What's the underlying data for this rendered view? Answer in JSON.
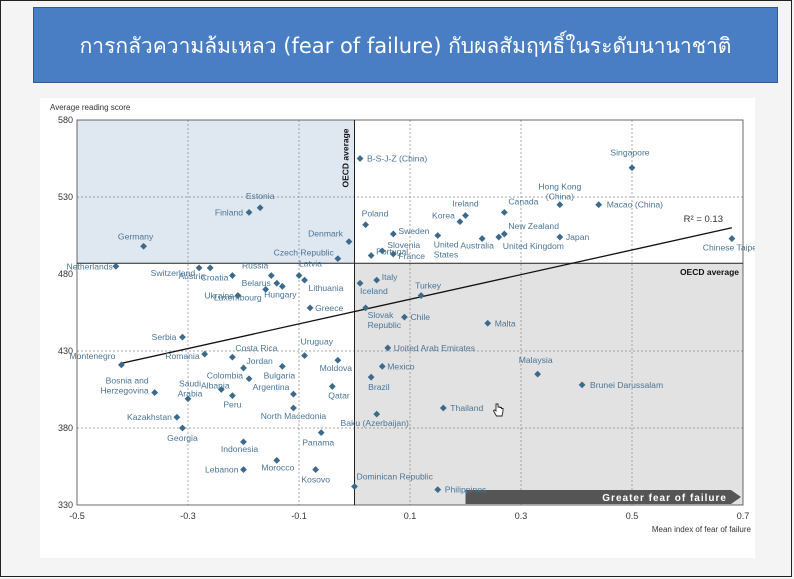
{
  "banner": {
    "title": "การกลัวความล้มเหลว (fear of failure) กับผลสัมฤทธิ์ในระดับนานาชาติ"
  },
  "colors": {
    "banner": "#4a7ec4",
    "point": "#3c6a8a",
    "label": "#4a7596",
    "quadrant_blue": "#dfe7f1",
    "quadrant_grey": "#e2e2e2"
  },
  "chart_data": {
    "type": "scatter",
    "ylabel": "Average reading score",
    "xlabel": "Mean index of fear of failure",
    "xlim": [
      -0.5,
      0.7
    ],
    "ylim": [
      330,
      580
    ],
    "xticks": [
      "-0.5",
      "-0.3",
      "-0.1",
      "0.1",
      "0.3",
      "0.5",
      "0.7"
    ],
    "yticks": [
      "330",
      "380",
      "430",
      "480",
      "530",
      "580"
    ],
    "oecd_avg_x": 0.0,
    "oecd_avg_y": 487,
    "oecd_average_label_v": "OECD average",
    "oecd_average_label_h": "OECD average",
    "r2_label": "R² = 0.13",
    "arrow_label": "Greater fear of failure",
    "trendline": [
      [
        -0.42,
        422
      ],
      [
        0.68,
        510
      ]
    ],
    "points": [
      {
        "name": "B-S-J-Z (China)",
        "x": 0.01,
        "y": 555
      },
      {
        "name": "Singapore",
        "x": 0.5,
        "y": 549
      },
      {
        "name": "Hong Kong (China)",
        "x": 0.37,
        "y": 525
      },
      {
        "name": "Macao (China)",
        "x": 0.44,
        "y": 525
      },
      {
        "name": "Estonia",
        "x": -0.17,
        "y": 523
      },
      {
        "name": "Finland",
        "x": -0.19,
        "y": 520
      },
      {
        "name": "Ireland",
        "x": 0.2,
        "y": 518
      },
      {
        "name": "Canada",
        "x": 0.27,
        "y": 520
      },
      {
        "name": "Korea",
        "x": 0.19,
        "y": 514
      },
      {
        "name": "Poland",
        "x": 0.02,
        "y": 512
      },
      {
        "name": "Sweden",
        "x": 0.07,
        "y": 506
      },
      {
        "name": "New Zealand",
        "x": 0.27,
        "y": 506
      },
      {
        "name": "Slovenia",
        "x": 0.05,
        "y": 495
      },
      {
        "name": "Japan",
        "x": 0.37,
        "y": 504
      },
      {
        "name": "United States",
        "x": 0.15,
        "y": 505
      },
      {
        "name": "Australia",
        "x": 0.23,
        "y": 503
      },
      {
        "name": "United Kingdom",
        "x": 0.26,
        "y": 504
      },
      {
        "name": "Chinese Taipei",
        "x": 0.68,
        "y": 503
      },
      {
        "name": "Germany",
        "x": -0.38,
        "y": 498
      },
      {
        "name": "Denmark",
        "x": -0.01,
        "y": 501
      },
      {
        "name": "Portugal",
        "x": 0.03,
        "y": 492
      },
      {
        "name": "Czech Republic",
        "x": -0.03,
        "y": 490
      },
      {
        "name": "France",
        "x": 0.07,
        "y": 493
      },
      {
        "name": "Netherlands",
        "x": -0.43,
        "y": 485
      },
      {
        "name": "Switzerland",
        "x": -0.28,
        "y": 484
      },
      {
        "name": "Austria",
        "x": -0.26,
        "y": 484
      },
      {
        "name": "Latvia",
        "x": -0.1,
        "y": 479
      },
      {
        "name": "Italy",
        "x": 0.04,
        "y": 476
      },
      {
        "name": "Russia",
        "x": -0.15,
        "y": 479
      },
      {
        "name": "Croatia",
        "x": -0.22,
        "y": 479
      },
      {
        "name": "Belarus",
        "x": -0.14,
        "y": 474
      },
      {
        "name": "Lithuania",
        "x": -0.09,
        "y": 476
      },
      {
        "name": "Iceland",
        "x": 0.01,
        "y": 474
      },
      {
        "name": "Ukraine",
        "x": -0.21,
        "y": 466
      },
      {
        "name": "Turkey",
        "x": 0.12,
        "y": 466
      },
      {
        "name": "Hungary",
        "x": -0.13,
        "y": 472
      },
      {
        "name": "Luxembourg",
        "x": -0.16,
        "y": 470
      },
      {
        "name": "Greece",
        "x": -0.08,
        "y": 458
      },
      {
        "name": "Slovak Republic",
        "x": 0.02,
        "y": 458
      },
      {
        "name": "Chile",
        "x": 0.09,
        "y": 452
      },
      {
        "name": "Malta",
        "x": 0.24,
        "y": 448
      },
      {
        "name": "Serbia",
        "x": -0.31,
        "y": 439
      },
      {
        "name": "Montenegro",
        "x": -0.42,
        "y": 421
      },
      {
        "name": "Costa Rica",
        "x": -0.22,
        "y": 426
      },
      {
        "name": "Uruguay",
        "x": -0.09,
        "y": 427
      },
      {
        "name": "United Arab Emirates",
        "x": 0.06,
        "y": 432
      },
      {
        "name": "Romania",
        "x": -0.27,
        "y": 428
      },
      {
        "name": "Jordan",
        "x": -0.2,
        "y": 419
      },
      {
        "name": "Moldova",
        "x": -0.03,
        "y": 424
      },
      {
        "name": "Mexico",
        "x": 0.05,
        "y": 420
      },
      {
        "name": "Colombia",
        "x": -0.19,
        "y": 412
      },
      {
        "name": "Bulgaria",
        "x": -0.13,
        "y": 420
      },
      {
        "name": "Malaysia",
        "x": 0.33,
        "y": 415
      },
      {
        "name": "Brunei Darussalam",
        "x": 0.41,
        "y": 408
      },
      {
        "name": "Saudi Arabia",
        "x": -0.3,
        "y": 399
      },
      {
        "name": "Bosnia and Herzegovina",
        "x": -0.36,
        "y": 403
      },
      {
        "name": "Brazil",
        "x": 0.03,
        "y": 413
      },
      {
        "name": "Argentina",
        "x": -0.11,
        "y": 402
      },
      {
        "name": "Qatar",
        "x": -0.04,
        "y": 407
      },
      {
        "name": "Albania",
        "x": -0.24,
        "y": 405
      },
      {
        "name": "Peru",
        "x": -0.22,
        "y": 401
      },
      {
        "name": "Thailand",
        "x": 0.16,
        "y": 393
      },
      {
        "name": "Kazakhstan",
        "x": -0.32,
        "y": 387
      },
      {
        "name": "North Macedonia",
        "x": -0.11,
        "y": 393
      },
      {
        "name": "Baku (Azerbaijan)",
        "x": 0.04,
        "y": 389
      },
      {
        "name": "Georgia",
        "x": -0.31,
        "y": 380
      },
      {
        "name": "Panama",
        "x": -0.06,
        "y": 377
      },
      {
        "name": "Indonesia",
        "x": -0.2,
        "y": 371
      },
      {
        "name": "Morocco",
        "x": -0.14,
        "y": 359
      },
      {
        "name": "Lebanon",
        "x": -0.2,
        "y": 353
      },
      {
        "name": "Kosovo",
        "x": -0.07,
        "y": 353
      },
      {
        "name": "Dominican Republic",
        "x": 0.0,
        "y": 342
      },
      {
        "name": "Philippines",
        "x": 0.15,
        "y": 340
      }
    ]
  }
}
